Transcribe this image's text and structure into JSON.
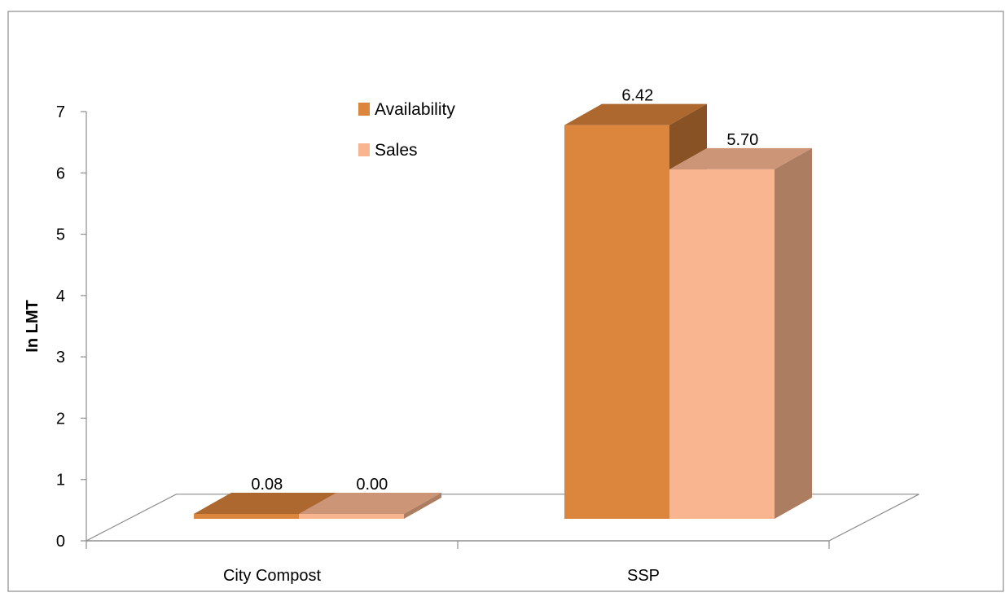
{
  "chart_data": {
    "type": "bar",
    "categories": [
      "City Compost",
      "SSP"
    ],
    "series": [
      {
        "name": "Availability",
        "values": [
          0.08,
          6.42
        ],
        "labels": [
          "0.08",
          "6.42"
        ],
        "color": "#DC853C"
      },
      {
        "name": "Sales",
        "values": [
          0.0,
          5.7
        ],
        "labels": [
          "0.00",
          "5.70"
        ],
        "color": "#F9B590"
      }
    ],
    "ylabel": "In LMT",
    "ylim": [
      0,
      7
    ],
    "yticks": [
      "0",
      "1",
      "2",
      "3",
      "4",
      "5",
      "6",
      "7"
    ],
    "legend_position": "top-center",
    "style": "3d-clustered-column",
    "grid": false
  }
}
